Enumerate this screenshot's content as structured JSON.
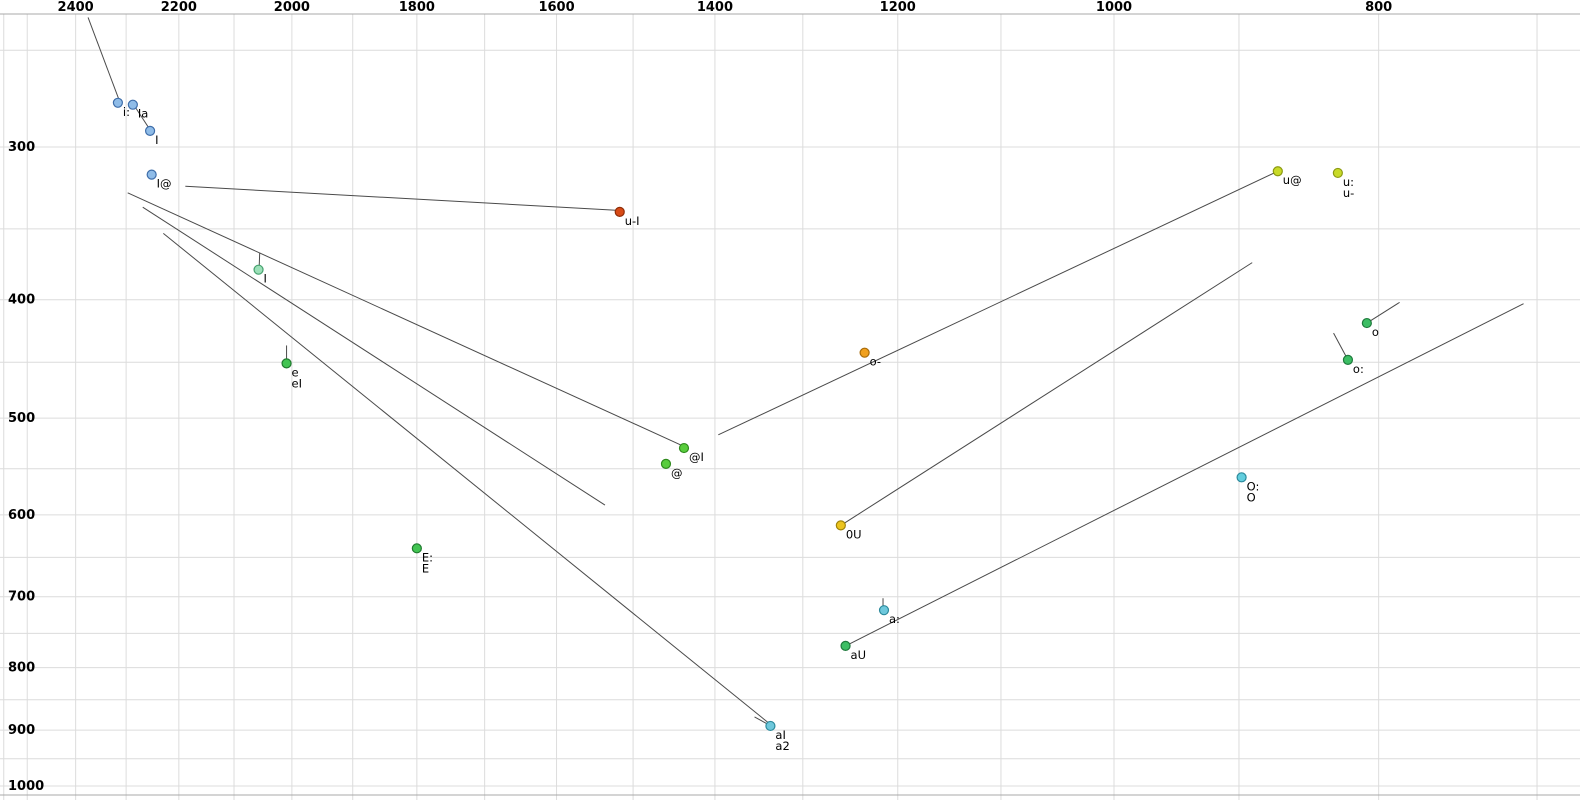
{
  "colors": {
    "background": "#ffffff",
    "grid": "#dcdcdc",
    "border": "#a8a8a8",
    "trajectory": "#4a4a4a",
    "tick_label": "#000000",
    "point_label": "#000000"
  },
  "chart_data": {
    "type": "scatter",
    "title": "",
    "description": "F2/F1 vowel formant plot in Hz; both axes log-scaled; F2 decreases left-to-right (2400 to 800), F1 increases top-to-bottom (300 to 1000); diphthong trajectories drawn as thin lines",
    "x_axis": {
      "ticks": [
        2400,
        2200,
        2000,
        1800,
        1600,
        1400,
        1200,
        1000,
        800
      ],
      "scale": "log",
      "direction": "reversed",
      "position": "top",
      "range": [
        2550,
        700
      ]
    },
    "y_axis": {
      "ticks": [
        300,
        400,
        500,
        600,
        700,
        800,
        900,
        1000
      ],
      "scale": "log",
      "direction": "downward",
      "position": "left",
      "range": [
        235,
        1020
      ]
    },
    "grid": {
      "on": true,
      "x_lines": [
        2550,
        2500,
        2400,
        2300,
        2200,
        2100,
        2000,
        1900,
        1800,
        1700,
        1600,
        1500,
        1400,
        1300,
        1200,
        1100,
        1000,
        900,
        800,
        700
      ],
      "y_lines": [
        250,
        300,
        350,
        400,
        450,
        500,
        550,
        600,
        650,
        700,
        750,
        800,
        850,
        900,
        950,
        1000
      ]
    },
    "points": [
      {
        "labels": [
          "i:"
        ],
        "f2": 2316,
        "f1": 276,
        "fill": "#8fbce8",
        "stroke": "#3f6eaa"
      },
      {
        "labels": [
          "Ia"
        ],
        "f2": 2287,
        "f1": 277,
        "fill": "#8fbce8",
        "stroke": "#3f6eaa"
      },
      {
        "labels": [
          "I"
        ],
        "f2": 2254,
        "f1": 291,
        "fill": "#8fbce8",
        "stroke": "#3f6eaa"
      },
      {
        "labels": [
          "I@"
        ],
        "f2": 2251,
        "f1": 316,
        "fill": "#8fbce8",
        "stroke": "#3f6eaa"
      },
      {
        "labels": [
          "u-I"
        ],
        "f2": 1517,
        "f1": 339,
        "fill": "#d84a16",
        "stroke": "#8f2d08"
      },
      {
        "labels": [
          "u@"
        ],
        "f2": 871,
        "f1": 314,
        "fill": "#c8da28",
        "stroke": "#8c9a12"
      },
      {
        "labels": [
          "u:",
          "u-"
        ],
        "f2": 828,
        "f1": 315,
        "fill": "#c8da28",
        "stroke": "#8c9a12"
      },
      {
        "labels": [
          "I"
        ],
        "f2": 2057,
        "f1": 378,
        "fill": "#9be0b8",
        "stroke": "#46a06e"
      },
      {
        "labels": [
          "e",
          "eI"
        ],
        "f2": 2009,
        "f1": 451,
        "fill": "#42c452",
        "stroke": "#1f7a2e"
      },
      {
        "labels": [
          "o-"
        ],
        "f2": 1234,
        "f1": 442,
        "fill": "#f0a01e",
        "stroke": "#a86a08"
      },
      {
        "labels": [
          "o"
        ],
        "f2": 808,
        "f1": 418,
        "fill": "#3cbe64",
        "stroke": "#1e7a3c"
      },
      {
        "labels": [
          "o:"
        ],
        "f2": 821,
        "f1": 448,
        "fill": "#3cbe64",
        "stroke": "#1e7a3c"
      },
      {
        "labels": [
          "@I"
        ],
        "f2": 1437,
        "f1": 529,
        "fill": "#58cc3c",
        "stroke": "#2e8a1c"
      },
      {
        "labels": [
          "@"
        ],
        "f2": 1459,
        "f1": 545,
        "fill": "#58cc3c",
        "stroke": "#2e8a1c"
      },
      {
        "labels": [
          "O:",
          "O"
        ],
        "f2": 898,
        "f1": 559,
        "fill": "#62cede",
        "stroke": "#2c8a9c"
      },
      {
        "labels": [
          "0U"
        ],
        "f2": 1259,
        "f1": 612,
        "fill": "#ecc41e",
        "stroke": "#a0840a"
      },
      {
        "labels": [
          "E:",
          "E"
        ],
        "f2": 1800,
        "f1": 639,
        "fill": "#42c452",
        "stroke": "#1f7a2e"
      },
      {
        "labels": [
          "a:"
        ],
        "f2": 1214,
        "f1": 718,
        "fill": "#6ec8dc",
        "stroke": "#2c8a9c"
      },
      {
        "labels": [
          "aU"
        ],
        "f2": 1254,
        "f1": 768,
        "fill": "#3cbe64",
        "stroke": "#1e7a3c"
      },
      {
        "labels": [
          "aI",
          "a2"
        ],
        "f2": 1336,
        "f1": 893,
        "fill": "#6ec8dc",
        "stroke": "#2c8a9c"
      }
    ],
    "trajectories": [
      {
        "from": [
          2375,
          235
        ],
        "to": [
          2313,
          275
        ]
      },
      {
        "from": [
          2283,
          278
        ],
        "to": [
          2255,
          290
        ]
      },
      {
        "from": [
          2188,
          323
        ],
        "to": [
          1519,
          338
        ]
      },
      {
        "from": [
          2297,
          327
        ],
        "to": [
          1438,
          527
        ]
      },
      {
        "from": [
          2268,
          336
        ],
        "to": [
          1536,
          589
        ]
      },
      {
        "from": [
          2229,
          353
        ],
        "to": [
          1338,
          888
        ]
      },
      {
        "from": [
          1259,
          612
        ],
        "to": [
          890,
          373
        ]
      },
      {
        "from": [
          1396,
          516
        ],
        "to": [
          871,
          314
        ]
      },
      {
        "from": [
          1254,
          768
        ],
        "to": [
          708,
          403
        ]
      },
      {
        "from": [
          808,
          418
        ],
        "to": [
          786,
          402
        ]
      },
      {
        "from": [
          831,
          426
        ],
        "to": [
          821,
          448
        ]
      },
      {
        "from": [
          2055,
          366
        ],
        "to": [
          2056,
          377
        ]
      },
      {
        "from": [
          2009,
          436
        ],
        "to": [
          2009,
          450
        ]
      },
      {
        "from": [
          1215,
          702
        ],
        "to": [
          1215,
          715
        ]
      },
      {
        "from": [
          1354,
          878
        ],
        "to": [
          1339,
          890
        ]
      }
    ]
  }
}
